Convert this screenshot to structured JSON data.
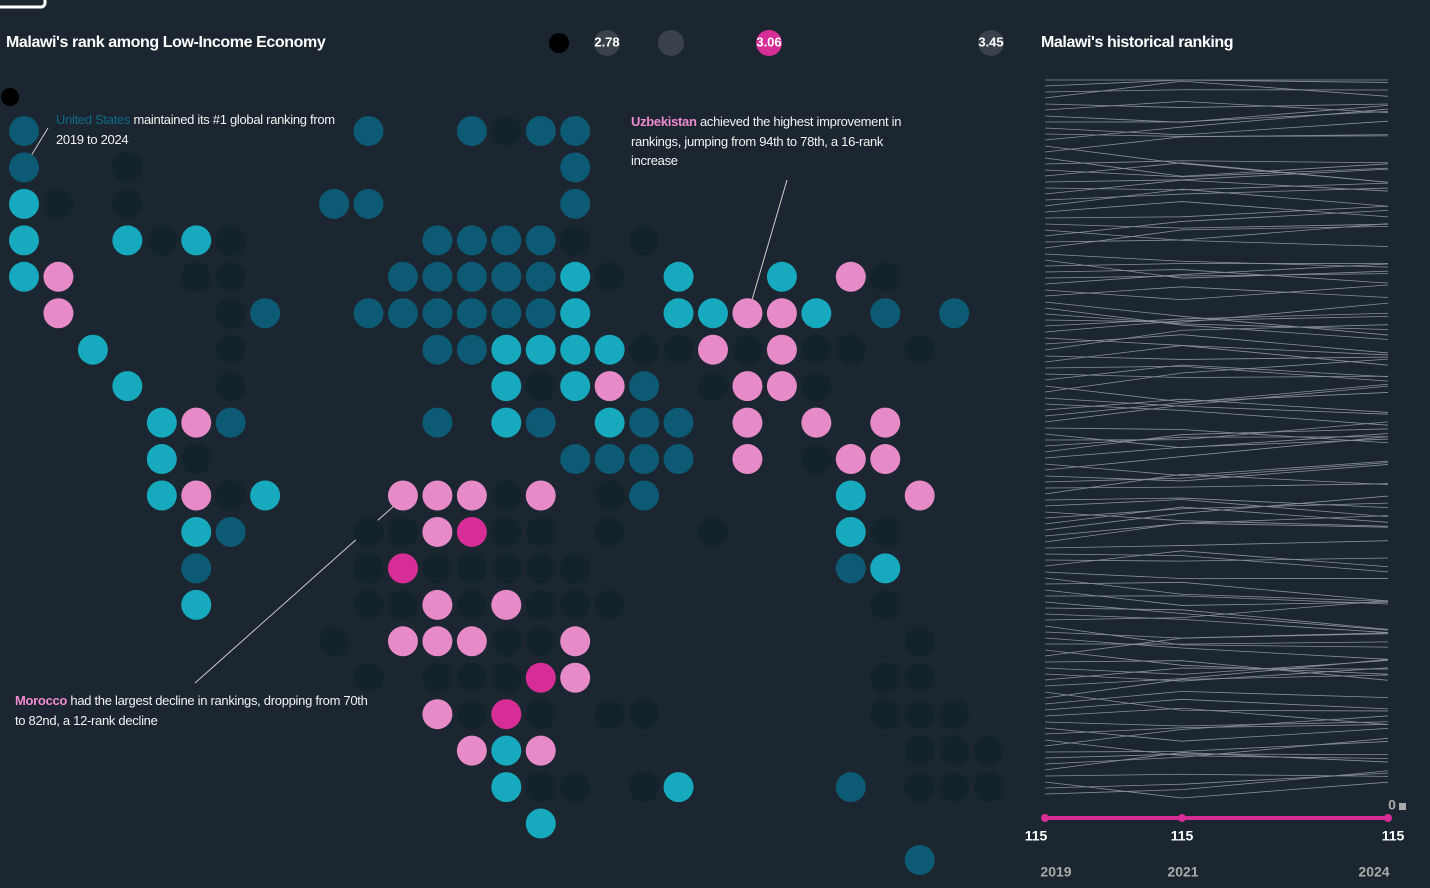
{
  "header": {
    "title": "Malawi's rank among Low-Income Economy",
    "legend": [
      2.78,
      3.06,
      3.45
    ]
  },
  "annotations": [
    {
      "highlight": "United States",
      "text": "maintained its #1 global ranking from 2019 to 2024"
    },
    {
      "highlight": "Uzbekistan",
      "text": "achieved the highest improvement in rankings, jumping from 94th to 78th, a 16-rank increase"
    },
    {
      "highlight": "Morocco",
      "text": "had the largest decline in rankings, dropping from 70th to 82nd, a 12-rank decline"
    }
  ],
  "history": {
    "title": "Malawi's historical ranking",
    "axis_top": 0,
    "ranks": [
      115,
      115,
      115
    ],
    "years": [
      2019,
      2021,
      2024
    ]
  }
}
